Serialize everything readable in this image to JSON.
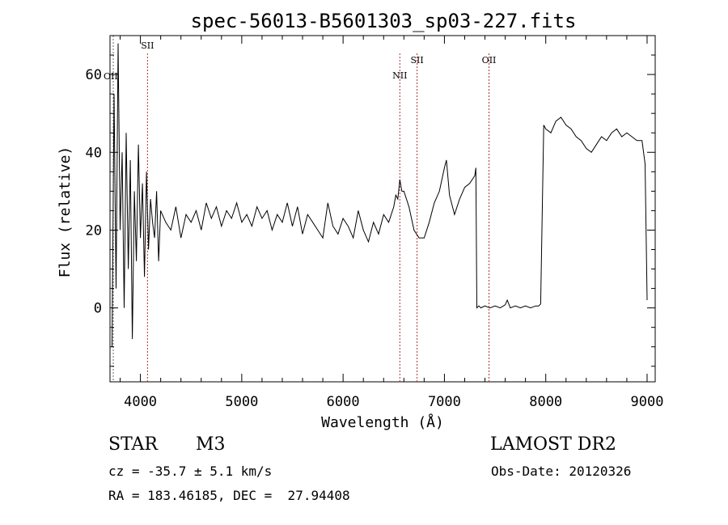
{
  "chart_data": {
    "type": "line",
    "title": "spec-56013-B5601303_sp03-227.fits",
    "xlabel": "Wavelength (Å)",
    "ylabel": "Flux (relative)",
    "xlim": [
      3700,
      9080
    ],
    "ylim": [
      -19,
      70
    ],
    "xticks": [
      4000,
      5000,
      6000,
      7000,
      8000,
      9000
    ],
    "yticks": [
      0,
      20,
      40,
      60
    ],
    "xtick_labels": [
      "4000",
      "5000",
      "6000",
      "7000",
      "8000",
      "9000"
    ],
    "ytick_labels": [
      "0",
      "20",
      "40",
      "60"
    ],
    "grid": false,
    "line_color": "#000000",
    "marker_color": "#b03030",
    "series": [
      {
        "x": [
          3720,
          3740,
          3760,
          3780,
          3800,
          3820,
          3840,
          3860,
          3880,
          3900,
          3920,
          3940,
          3960,
          3980,
          4000,
          4020,
          4040,
          4060,
          4080,
          4100,
          4120,
          4140,
          4160,
          4180,
          4200,
          4250,
          4300,
          4350,
          4400,
          4450,
          4500,
          4550,
          4600,
          4650,
          4700,
          4750,
          4800,
          4850,
          4900,
          4950,
          5000,
          5050,
          5100,
          5150,
          5200,
          5250,
          5300,
          5350,
          5400,
          5450,
          5500,
          5550,
          5600,
          5650,
          5700,
          5750,
          5800,
          5850,
          5900,
          5950,
          6000,
          6050,
          6100,
          6150,
          6200,
          6250,
          6300,
          6350,
          6400,
          6450,
          6500,
          6520,
          6540,
          6560,
          6580,
          6600,
          6650,
          6700,
          6750,
          6800,
          6850,
          6900,
          6950,
          7000,
          7020,
          7050,
          7100,
          7150,
          7200,
          7250,
          7300,
          7310,
          7320,
          7340,
          7360,
          7400,
          7450,
          7500,
          7550,
          7600,
          7620,
          7650,
          7700,
          7750,
          7800,
          7850,
          7900,
          7930,
          7950,
          7980,
          8000,
          8050,
          8100,
          8150,
          8200,
          8250,
          8300,
          8350,
          8400,
          8450,
          8500,
          8550,
          8600,
          8650,
          8700,
          8750,
          8800,
          8850,
          8900,
          8950,
          8980,
          9000
        ],
        "y": [
          -10,
          55,
          5,
          68,
          20,
          40,
          0,
          45,
          10,
          38,
          -8,
          30,
          12,
          42,
          18,
          32,
          8,
          35,
          15,
          28,
          22,
          18,
          30,
          12,
          25,
          22,
          20,
          26,
          18,
          24,
          22,
          25,
          20,
          27,
          23,
          26,
          21,
          25,
          23,
          27,
          22,
          24,
          21,
          26,
          23,
          25,
          20,
          24,
          22,
          27,
          21,
          26,
          19,
          24,
          22,
          20,
          18,
          27,
          21,
          19,
          23,
          21,
          18,
          25,
          20,
          17,
          22,
          19,
          24,
          22,
          26,
          29,
          28,
          33,
          30,
          30,
          26,
          20,
          18,
          18,
          22,
          27,
          30,
          36,
          38,
          29,
          24,
          28,
          31,
          32,
          34,
          36,
          0,
          0.5,
          0,
          0.5,
          0,
          0.5,
          0,
          0.8,
          2,
          0,
          0.5,
          0,
          0.5,
          0,
          0.5,
          0.5,
          1,
          47,
          46,
          45,
          48,
          49,
          47,
          46,
          44,
          43,
          41,
          40,
          42,
          44,
          43,
          45,
          46,
          44,
          45,
          44,
          43,
          43,
          37,
          2
        ]
      }
    ],
    "line_markers": [
      {
        "label": "SII",
        "x": 4070
      },
      {
        "label": "NII",
        "x": 6560
      },
      {
        "label": "SII",
        "x": 6730
      },
      {
        "label": "OII",
        "x": 7440
      }
    ],
    "offscale_label": "OII"
  },
  "footer": {
    "object_class": "STAR",
    "subclass": "M3",
    "survey": "LAMOST DR2",
    "velocity": "cz = -35.7 ± 5.1 km/s",
    "obs_date": "Obs-Date: 20120326",
    "coords": "RA = 183.46185, DEC =  27.94408"
  }
}
